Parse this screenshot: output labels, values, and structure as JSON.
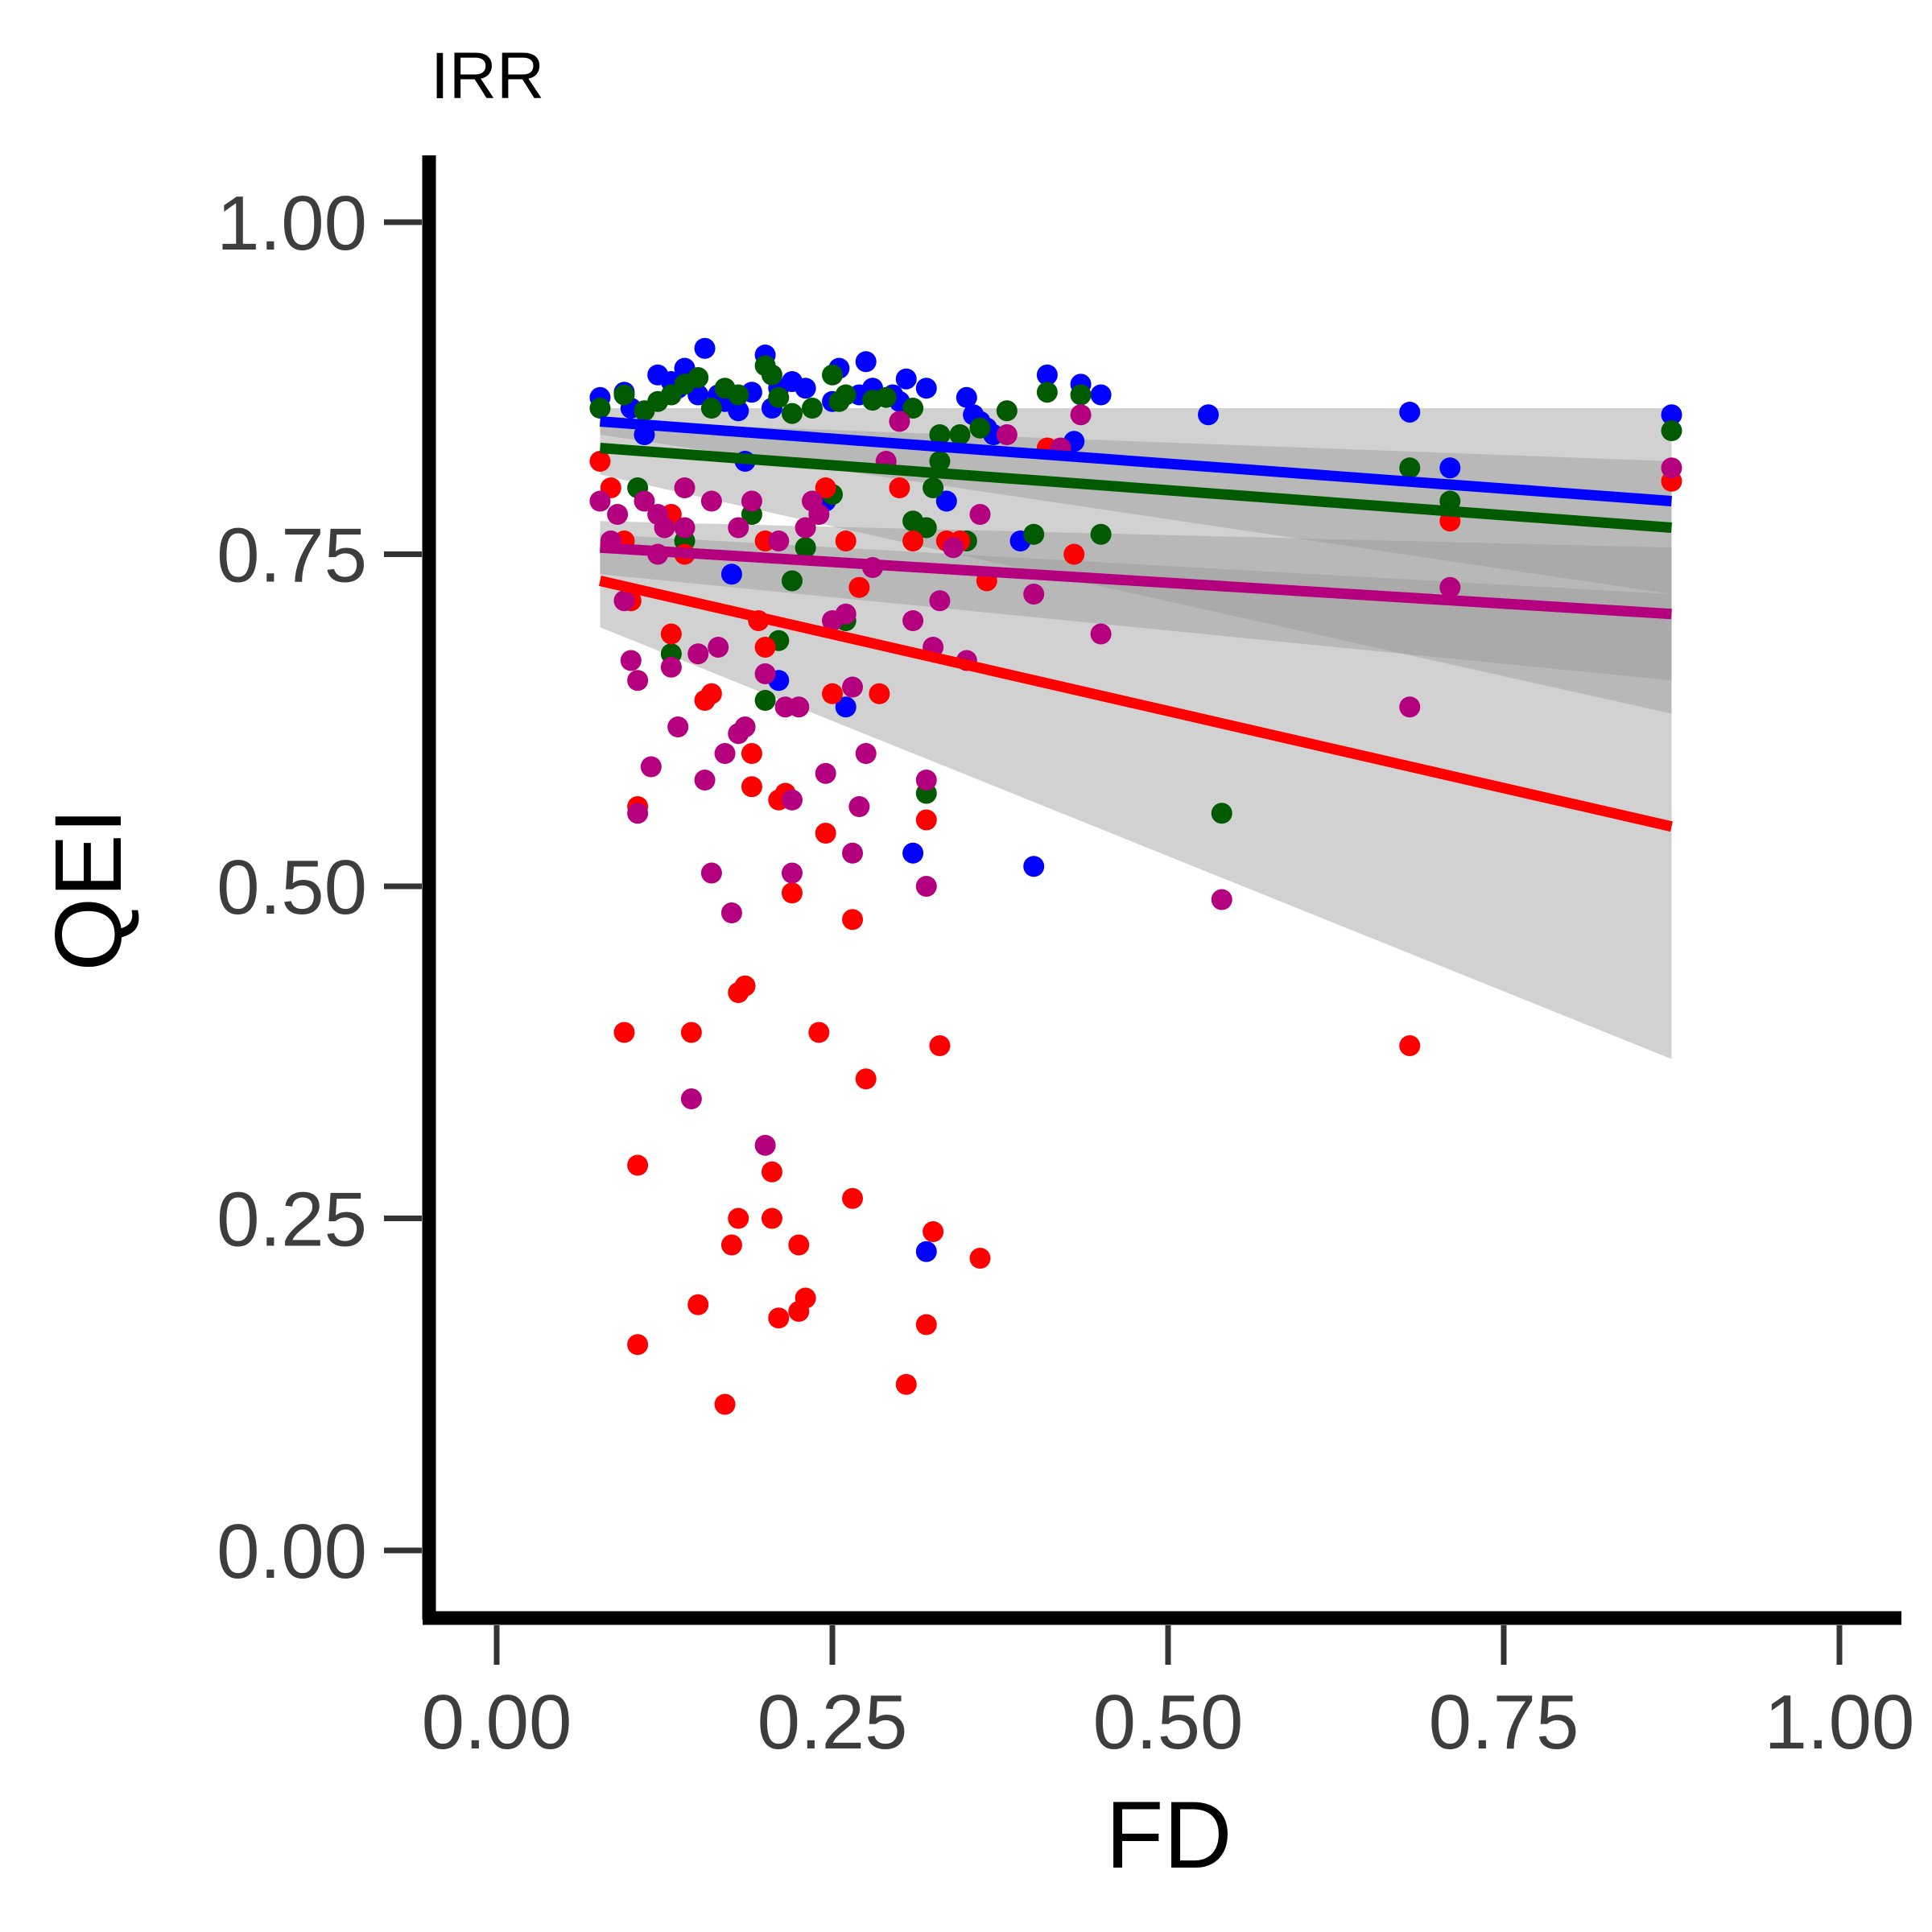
{
  "chart_data": {
    "type": "scatter",
    "title": "IRR",
    "xlabel": "FD",
    "ylabel": "QEI",
    "xlim": [
      -0.05,
      1.05
    ],
    "ylim": [
      -0.05,
      1.05
    ],
    "x_ticks": [
      "0.00",
      "0.25",
      "0.50",
      "0.75",
      "1.00"
    ],
    "y_ticks": [
      "0.00",
      "0.25",
      "0.50",
      "0.75",
      "1.00"
    ],
    "x_tick_values": [
      0,
      0.25,
      0.5,
      0.75,
      1.0
    ],
    "y_tick_values": [
      0,
      0.25,
      0.5,
      0.75,
      1.0
    ],
    "grid": false,
    "legend": "none",
    "series": [
      {
        "color": "#0000ff",
        "fit": {
          "x": [
            0.077,
            0.875
          ],
          "y": [
            0.85,
            0.79
          ],
          "ci_low": [
            0.84,
            0.72
          ],
          "ci_high": [
            0.86,
            0.86
          ]
        },
        "points": [
          [
            0.077,
            0.868
          ],
          [
            0.095,
            0.872
          ],
          [
            0.1,
            0.86
          ],
          [
            0.12,
            0.885
          ],
          [
            0.13,
            0.88
          ],
          [
            0.135,
            0.875
          ],
          [
            0.14,
            0.89
          ],
          [
            0.15,
            0.87
          ],
          [
            0.155,
            0.905
          ],
          [
            0.165,
            0.87
          ],
          [
            0.17,
            0.865
          ],
          [
            0.18,
            0.858
          ],
          [
            0.19,
            0.872
          ],
          [
            0.2,
            0.9
          ],
          [
            0.205,
            0.86
          ],
          [
            0.21,
            0.875
          ],
          [
            0.22,
            0.88
          ],
          [
            0.23,
            0.875
          ],
          [
            0.25,
            0.865
          ],
          [
            0.255,
            0.89
          ],
          [
            0.27,
            0.87
          ],
          [
            0.275,
            0.895
          ],
          [
            0.28,
            0.875
          ],
          [
            0.295,
            0.87
          ],
          [
            0.3,
            0.865
          ],
          [
            0.305,
            0.882
          ],
          [
            0.32,
            0.875
          ],
          [
            0.35,
            0.868
          ],
          [
            0.355,
            0.855
          ],
          [
            0.36,
            0.85
          ],
          [
            0.365,
            0.845
          ],
          [
            0.37,
            0.84
          ],
          [
            0.39,
            0.76
          ],
          [
            0.41,
            0.885
          ],
          [
            0.435,
            0.878
          ],
          [
            0.45,
            0.87
          ],
          [
            0.53,
            0.855
          ],
          [
            0.68,
            0.857
          ],
          [
            0.71,
            0.815
          ],
          [
            0.875,
            0.855
          ],
          [
            0.175,
            0.735
          ],
          [
            0.21,
            0.655
          ],
          [
            0.26,
            0.635
          ],
          [
            0.31,
            0.525
          ],
          [
            0.4,
            0.515
          ],
          [
            0.32,
            0.225
          ],
          [
            0.335,
            0.79
          ],
          [
            0.43,
            0.835
          ],
          [
            0.11,
            0.84
          ],
          [
            0.245,
            0.79
          ],
          [
            0.185,
            0.82
          ]
        ]
      },
      {
        "color": "#005a00",
        "fit": {
          "x": [
            0.077,
            0.875
          ],
          "y": [
            0.83,
            0.77
          ],
          "ci_low": [
            0.81,
            0.63
          ],
          "ci_high": [
            0.85,
            0.82
          ]
        },
        "points": [
          [
            0.077,
            0.86
          ],
          [
            0.095,
            0.87
          ],
          [
            0.11,
            0.858
          ],
          [
            0.12,
            0.865
          ],
          [
            0.13,
            0.87
          ],
          [
            0.14,
            0.878
          ],
          [
            0.15,
            0.883
          ],
          [
            0.16,
            0.86
          ],
          [
            0.17,
            0.875
          ],
          [
            0.18,
            0.87
          ],
          [
            0.2,
            0.892
          ],
          [
            0.205,
            0.885
          ],
          [
            0.21,
            0.868
          ],
          [
            0.22,
            0.856
          ],
          [
            0.235,
            0.86
          ],
          [
            0.25,
            0.885
          ],
          [
            0.255,
            0.865
          ],
          [
            0.26,
            0.87
          ],
          [
            0.28,
            0.866
          ],
          [
            0.29,
            0.868
          ],
          [
            0.31,
            0.86
          ],
          [
            0.33,
            0.84
          ],
          [
            0.345,
            0.84
          ],
          [
            0.36,
            0.845
          ],
          [
            0.38,
            0.858
          ],
          [
            0.4,
            0.765
          ],
          [
            0.41,
            0.872
          ],
          [
            0.435,
            0.87
          ],
          [
            0.45,
            0.765
          ],
          [
            0.54,
            0.555
          ],
          [
            0.68,
            0.815
          ],
          [
            0.71,
            0.79
          ],
          [
            0.875,
            0.843
          ],
          [
            0.31,
            0.775
          ],
          [
            0.32,
            0.77
          ],
          [
            0.325,
            0.8
          ],
          [
            0.33,
            0.82
          ],
          [
            0.35,
            0.76
          ],
          [
            0.2,
            0.64
          ],
          [
            0.22,
            0.73
          ],
          [
            0.13,
            0.675
          ],
          [
            0.21,
            0.685
          ],
          [
            0.32,
            0.57
          ],
          [
            0.25,
            0.795
          ],
          [
            0.19,
            0.78
          ],
          [
            0.14,
            0.76
          ],
          [
            0.105,
            0.8
          ],
          [
            0.26,
            0.7
          ],
          [
            0.23,
            0.755
          ]
        ]
      },
      {
        "color": "#ff0000",
        "fit": {
          "x": [
            0.077,
            0.875
          ],
          "y": [
            0.73,
            0.545
          ],
          "ci_low": [
            0.695,
            0.37
          ],
          "ci_high": [
            0.765,
            0.72
          ]
        },
        "points": [
          [
            0.077,
            0.82
          ],
          [
            0.085,
            0.8
          ],
          [
            0.095,
            0.76
          ],
          [
            0.1,
            0.715
          ],
          [
            0.105,
            0.56
          ],
          [
            0.095,
            0.39
          ],
          [
            0.105,
            0.29
          ],
          [
            0.105,
            0.155
          ],
          [
            0.13,
            0.69
          ],
          [
            0.14,
            0.75
          ],
          [
            0.145,
            0.39
          ],
          [
            0.15,
            0.185
          ],
          [
            0.155,
            0.64
          ],
          [
            0.16,
            0.645
          ],
          [
            0.17,
            0.11
          ],
          [
            0.175,
            0.23
          ],
          [
            0.18,
            0.25
          ],
          [
            0.18,
            0.42
          ],
          [
            0.185,
            0.425
          ],
          [
            0.19,
            0.575
          ],
          [
            0.19,
            0.6
          ],
          [
            0.195,
            0.7
          ],
          [
            0.2,
            0.68
          ],
          [
            0.205,
            0.285
          ],
          [
            0.205,
            0.25
          ],
          [
            0.21,
            0.175
          ],
          [
            0.21,
            0.565
          ],
          [
            0.215,
            0.57
          ],
          [
            0.22,
            0.495
          ],
          [
            0.225,
            0.18
          ],
          [
            0.225,
            0.23
          ],
          [
            0.23,
            0.19
          ],
          [
            0.24,
            0.39
          ],
          [
            0.245,
            0.54
          ],
          [
            0.25,
            0.645
          ],
          [
            0.26,
            0.76
          ],
          [
            0.265,
            0.475
          ],
          [
            0.265,
            0.265
          ],
          [
            0.27,
            0.725
          ],
          [
            0.275,
            0.355
          ],
          [
            0.285,
            0.645
          ],
          [
            0.3,
            0.8
          ],
          [
            0.305,
            0.125
          ],
          [
            0.31,
            0.76
          ],
          [
            0.32,
            0.55
          ],
          [
            0.32,
            0.17
          ],
          [
            0.325,
            0.24
          ],
          [
            0.33,
            0.38
          ],
          [
            0.335,
            0.76
          ],
          [
            0.345,
            0.76
          ],
          [
            0.36,
            0.22
          ],
          [
            0.365,
            0.73
          ],
          [
            0.41,
            0.83
          ],
          [
            0.43,
            0.75
          ],
          [
            0.68,
            0.38
          ],
          [
            0.875,
            0.805
          ],
          [
            0.71,
            0.775
          ],
          [
            0.2,
            0.76
          ],
          [
            0.245,
            0.8
          ],
          [
            0.13,
            0.78
          ]
        ]
      },
      {
        "color": "#b4007f",
        "fit": {
          "x": [
            0.077,
            0.875
          ],
          "y": [
            0.755,
            0.705
          ],
          "ci_low": [
            0.735,
            0.655
          ],
          "ci_high": [
            0.775,
            0.755
          ]
        },
        "points": [
          [
            0.077,
            0.79
          ],
          [
            0.085,
            0.76
          ],
          [
            0.09,
            0.78
          ],
          [
            0.095,
            0.715
          ],
          [
            0.1,
            0.67
          ],
          [
            0.105,
            0.555
          ],
          [
            0.105,
            0.655
          ],
          [
            0.11,
            0.79
          ],
          [
            0.115,
            0.59
          ],
          [
            0.12,
            0.78
          ],
          [
            0.125,
            0.77
          ],
          [
            0.13,
            0.665
          ],
          [
            0.135,
            0.62
          ],
          [
            0.14,
            0.77
          ],
          [
            0.145,
            0.34
          ],
          [
            0.15,
            0.675
          ],
          [
            0.155,
            0.58
          ],
          [
            0.16,
            0.51
          ],
          [
            0.165,
            0.68
          ],
          [
            0.17,
            0.6
          ],
          [
            0.175,
            0.48
          ],
          [
            0.18,
            0.615
          ],
          [
            0.185,
            0.62
          ],
          [
            0.19,
            0.79
          ],
          [
            0.2,
            0.66
          ],
          [
            0.2,
            0.305
          ],
          [
            0.21,
            0.76
          ],
          [
            0.215,
            0.635
          ],
          [
            0.22,
            0.565
          ],
          [
            0.22,
            0.51
          ],
          [
            0.225,
            0.635
          ],
          [
            0.235,
            0.79
          ],
          [
            0.24,
            0.78
          ],
          [
            0.245,
            0.585
          ],
          [
            0.25,
            0.7
          ],
          [
            0.26,
            0.705
          ],
          [
            0.265,
            0.65
          ],
          [
            0.265,
            0.525
          ],
          [
            0.27,
            0.56
          ],
          [
            0.275,
            0.6
          ],
          [
            0.28,
            0.74
          ],
          [
            0.29,
            0.82
          ],
          [
            0.3,
            0.85
          ],
          [
            0.31,
            0.7
          ],
          [
            0.32,
            0.58
          ],
          [
            0.32,
            0.5
          ],
          [
            0.325,
            0.68
          ],
          [
            0.33,
            0.715
          ],
          [
            0.34,
            0.755
          ],
          [
            0.35,
            0.67
          ],
          [
            0.36,
            0.78
          ],
          [
            0.38,
            0.84
          ],
          [
            0.4,
            0.72
          ],
          [
            0.42,
            0.83
          ],
          [
            0.435,
            0.855
          ],
          [
            0.45,
            0.69
          ],
          [
            0.54,
            0.49
          ],
          [
            0.68,
            0.635
          ],
          [
            0.71,
            0.725
          ],
          [
            0.875,
            0.815
          ],
          [
            0.14,
            0.8
          ],
          [
            0.16,
            0.79
          ],
          [
            0.18,
            0.77
          ],
          [
            0.23,
            0.77
          ],
          [
            0.12,
            0.75
          ]
        ]
      }
    ]
  }
}
